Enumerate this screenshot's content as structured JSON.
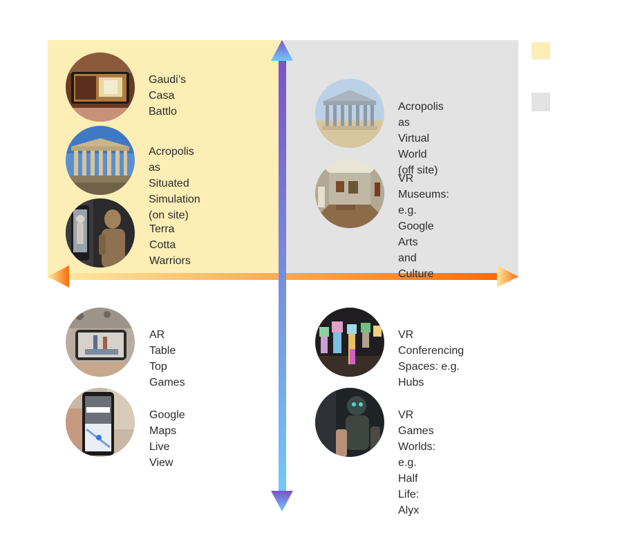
{
  "colors": {
    "quadrant_left_fill": "#fdeeb6",
    "quadrant_right_fill": "#e3e3e3",
    "horizontal_axis_start": "#fdeaa0",
    "horizontal_axis_end": "#fb6c0a",
    "vertical_axis_top": "#7a52c8",
    "vertical_axis_bottom": "#74c8fb"
  },
  "legend": [
    {
      "name": "legend-swatch-yellow",
      "color": "#fdeeb6"
    },
    {
      "name": "legend-swatch-gray",
      "color": "#e3e3e3"
    }
  ],
  "items": [
    {
      "id": "gaudi",
      "label": "Gaudi’s\nCasa Battlo",
      "icon": "phone-ar-interior-icon"
    },
    {
      "id": "acropolis-situated",
      "label": "Acropolis as Situated\nSimulation (on site)",
      "icon": "parthenon-photo-icon"
    },
    {
      "id": "terra-cotta",
      "label": "Terra Cotta\nWarriors",
      "icon": "warrior-statue-icon"
    },
    {
      "id": "acropolis-virtual",
      "label": "Acropolis as Virtual\nWorld (off site)",
      "icon": "parthenon-render-icon"
    },
    {
      "id": "vr-museums",
      "label": "VR Museums:\ne.g. Google Arts\nand Culture",
      "icon": "gallery-room-icon"
    },
    {
      "id": "ar-tabletop",
      "label": "AR Table\nTop Games",
      "icon": "tabletop-phone-icon"
    },
    {
      "id": "vr-conferencing",
      "label": "VR Conferencing\nSpaces: e.g. Hubs",
      "icon": "avatars-icon"
    },
    {
      "id": "google-maps",
      "label": "Google Maps\nLive View",
      "icon": "maps-phone-icon"
    },
    {
      "id": "vr-games",
      "label": "VR Games Worlds:\ne.g. Half Life: Alyx",
      "icon": "game-soldier-icon"
    }
  ]
}
